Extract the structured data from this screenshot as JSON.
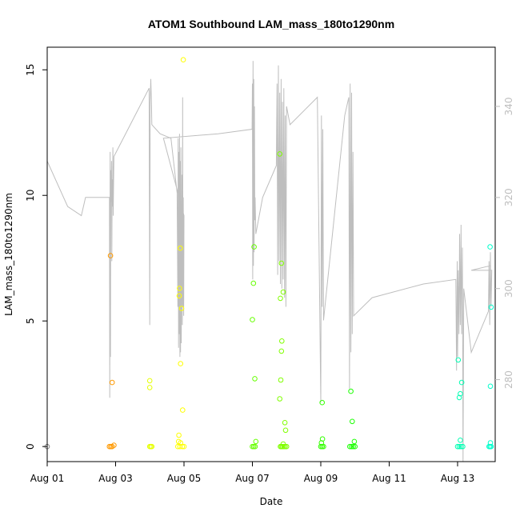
{
  "chart_data": {
    "type": "scatter",
    "title": "ATOM1 Southbound LAM_mass_180to1290nm",
    "xlabel": "Date",
    "ylabel": "LAM_mass_180to1290nm",
    "x_ticks": [
      "Aug 01",
      "Aug 03",
      "Aug 05",
      "Aug 07",
      "Aug 09",
      "Aug 11",
      "Aug 13"
    ],
    "y_ticks": [
      "0",
      "5",
      "10",
      "15"
    ],
    "y2_ticks": [
      "280",
      "300",
      "320",
      "340"
    ],
    "xlim": [
      0,
      13.1
    ],
    "ylim": [
      -0.6,
      15.9
    ],
    "y2lim": [
      262,
      353
    ],
    "grid": false,
    "legend": "none",
    "colors": {
      "axis": "#000000",
      "secondary_line": "#bebebe",
      "secondary_axis": "#bebebe",
      "point_colors": {
        "1": "#FF8000",
        "2": "#FF9900",
        "3": "#E6FF00",
        "4": "#FFFF00",
        "6": "#66FF00",
        "7": "#80FF00",
        "8": "#33FF00",
        "9": "#1AFF00",
        "12": "#00FFB3",
        "13": "#00FFCC"
      }
    },
    "series": [
      {
        "kind": "points",
        "points": [
          [
            0.0,
            0.0
          ],
          [
            1.82,
            0.0
          ],
          [
            1.86,
            0.0
          ],
          [
            1.9,
            0.0
          ],
          [
            1.95,
            0.05
          ],
          [
            1.85,
            7.6
          ],
          [
            1.9,
            2.55
          ],
          [
            3.0,
            0.0
          ],
          [
            3.03,
            0.0
          ],
          [
            3.06,
            0.0
          ],
          [
            3.0,
            2.35
          ],
          [
            3.0,
            2.62
          ],
          [
            3.82,
            0.0
          ],
          [
            3.88,
            0.0
          ],
          [
            3.95,
            0.0
          ],
          [
            4.0,
            0.0
          ],
          [
            3.84,
            0.2
          ],
          [
            3.85,
            0.45
          ],
          [
            3.9,
            0.15
          ],
          [
            3.86,
            6.0
          ],
          [
            3.87,
            6.3
          ],
          [
            3.89,
            7.9
          ],
          [
            3.9,
            3.3
          ],
          [
            3.93,
            5.5
          ],
          [
            3.96,
            1.45
          ],
          [
            3.98,
            15.4
          ],
          [
            6.0,
            0.0
          ],
          [
            6.04,
            0.0
          ],
          [
            6.08,
            0.0
          ],
          [
            6.1,
            0.2
          ],
          [
            6.0,
            5.05
          ],
          [
            6.03,
            6.5
          ],
          [
            6.05,
            7.95
          ],
          [
            6.07,
            2.7
          ],
          [
            6.82,
            0.0
          ],
          [
            6.85,
            0.0
          ],
          [
            6.88,
            0.0
          ],
          [
            6.92,
            0.0
          ],
          [
            6.96,
            0.0
          ],
          [
            7.0,
            0.0
          ],
          [
            6.9,
            0.1
          ],
          [
            6.8,
            11.65
          ],
          [
            6.85,
            7.3
          ],
          [
            6.82,
            5.9
          ],
          [
            6.9,
            6.15
          ],
          [
            6.86,
            4.2
          ],
          [
            6.85,
            3.8
          ],
          [
            6.83,
            2.65
          ],
          [
            6.8,
            1.9
          ],
          [
            6.95,
            0.95
          ],
          [
            6.97,
            0.65
          ],
          [
            8.0,
            0.0
          ],
          [
            8.04,
            0.0
          ],
          [
            8.08,
            0.0
          ],
          [
            8.02,
            0.15
          ],
          [
            8.05,
            0.3
          ],
          [
            8.04,
            1.75
          ],
          [
            8.85,
            0.0
          ],
          [
            8.9,
            0.0
          ],
          [
            8.95,
            0.0
          ],
          [
            9.0,
            0.0
          ],
          [
            8.98,
            0.2
          ],
          [
            8.88,
            2.2
          ],
          [
            8.92,
            1.0
          ],
          [
            12.0,
            0.0
          ],
          [
            12.05,
            0.0
          ],
          [
            12.1,
            0.0
          ],
          [
            12.15,
            0.0
          ],
          [
            12.08,
            0.25
          ],
          [
            12.02,
            3.45
          ],
          [
            12.05,
            1.95
          ],
          [
            12.08,
            2.1
          ],
          [
            12.12,
            2.55
          ],
          [
            12.92,
            0.0
          ],
          [
            12.95,
            0.0
          ],
          [
            12.98,
            0.0
          ],
          [
            12.96,
            0.15
          ],
          [
            12.95,
            7.95
          ],
          [
            12.98,
            5.55
          ],
          [
            12.96,
            2.4
          ]
        ]
      },
      {
        "kind": "line",
        "axis": "right",
        "points": [
          [
            0.0,
            328.0
          ],
          [
            0.6,
            318.0
          ],
          [
            1.0,
            316.0
          ],
          [
            1.12,
            320.0
          ],
          [
            1.82,
            320.0
          ],
          [
            1.83,
            276.0
          ],
          [
            1.84,
            330.0
          ],
          [
            1.85,
            285.0
          ],
          [
            1.86,
            326.0
          ],
          [
            1.87,
            319.0
          ],
          [
            1.88,
            328.0
          ],
          [
            1.89,
            306.0
          ],
          [
            1.9,
            324.0
          ],
          [
            1.91,
            318.0
          ],
          [
            1.92,
            331.0
          ],
          [
            1.93,
            316.0
          ],
          [
            1.94,
            322.0
          ],
          [
            1.95,
            329.0
          ],
          [
            2.98,
            344.0
          ],
          [
            3.0,
            292.0
          ],
          [
            3.01,
            341.0
          ],
          [
            3.03,
            346.0
          ],
          [
            3.05,
            340.0
          ],
          [
            3.06,
            336.0
          ],
          [
            3.3,
            334.0
          ],
          [
            3.62,
            333.0
          ],
          [
            3.8,
            321.0
          ],
          [
            3.82,
            296.0
          ],
          [
            3.83,
            333.0
          ],
          [
            3.84,
            287.0
          ],
          [
            3.85,
            330.0
          ],
          [
            3.86,
            290.0
          ],
          [
            3.87,
            334.0
          ],
          [
            3.88,
            285.0
          ],
          [
            3.89,
            328.0
          ],
          [
            3.9,
            286.0
          ],
          [
            3.91,
            331.0
          ],
          [
            3.92,
            288.0
          ],
          [
            3.94,
            325.0
          ],
          [
            3.95,
            292.0
          ],
          [
            3.96,
            342.0
          ],
          [
            3.97,
            296.0
          ],
          [
            3.98,
            320.0
          ],
          [
            3.99,
            294.0
          ],
          [
            4.0,
            316.0
          ],
          [
            3.4,
            333.0
          ],
          [
            5.0,
            334.0
          ],
          [
            5.99,
            335.0
          ],
          [
            6.0,
            345.0
          ],
          [
            6.01,
            302.0
          ],
          [
            6.02,
            350.0
          ],
          [
            6.03,
            305.0
          ],
          [
            6.04,
            346.0
          ],
          [
            6.05,
            308.0
          ],
          [
            6.06,
            340.0
          ],
          [
            6.07,
            315.0
          ],
          [
            6.08,
            320.0
          ],
          [
            6.1,
            312.0
          ],
          [
            6.3,
            320.0
          ],
          [
            6.7,
            327.0
          ],
          [
            6.72,
            345.0
          ],
          [
            6.74,
            303.0
          ],
          [
            6.76,
            349.0
          ],
          [
            6.78,
            306.0
          ],
          [
            6.8,
            343.0
          ],
          [
            6.82,
            301.0
          ],
          [
            6.84,
            346.0
          ],
          [
            6.86,
            300.0
          ],
          [
            6.88,
            341.0
          ],
          [
            6.9,
            302.0
          ],
          [
            6.92,
            344.0
          ],
          [
            6.94,
            298.0
          ],
          [
            6.96,
            338.0
          ],
          [
            6.98,
            296.0
          ],
          [
            7.0,
            340.0
          ],
          [
            7.1,
            336.0
          ],
          [
            7.9,
            342.0
          ],
          [
            8.0,
            275.0
          ],
          [
            8.02,
            338.0
          ],
          [
            8.04,
            296.0
          ],
          [
            8.06,
            335.0
          ],
          [
            8.08,
            293.0
          ],
          [
            8.7,
            338.0
          ],
          [
            8.82,
            342.0
          ],
          [
            8.84,
            278.0
          ],
          [
            8.86,
            345.0
          ],
          [
            8.88,
            286.0
          ],
          [
            8.9,
            343.0
          ],
          [
            8.92,
            290.0
          ],
          [
            8.94,
            330.0
          ],
          [
            8.96,
            294.0
          ],
          [
            9.5,
            298.0
          ],
          [
            11.0,
            301.0
          ],
          [
            11.95,
            302.0
          ],
          [
            11.97,
            282.0
          ],
          [
            11.99,
            306.0
          ],
          [
            12.0,
            285.0
          ],
          [
            12.02,
            304.0
          ],
          [
            12.04,
            290.0
          ],
          [
            12.06,
            312.0
          ],
          [
            12.08,
            292.0
          ],
          [
            12.1,
            314.0
          ],
          [
            12.12,
            290.0
          ],
          [
            12.14,
            309.0
          ],
          [
            12.16,
            262.0
          ],
          [
            12.18,
            300.0
          ],
          [
            12.4,
            286.0
          ],
          [
            12.9,
            295.0
          ],
          [
            12.92,
            306.0
          ],
          [
            12.94,
            292.0
          ],
          [
            12.96,
            308.0
          ],
          [
            12.98,
            296.0
          ],
          [
            13.0,
            304.0
          ],
          [
            12.4,
            304.0
          ],
          [
            12.95,
            305.0
          ]
        ]
      }
    ]
  }
}
